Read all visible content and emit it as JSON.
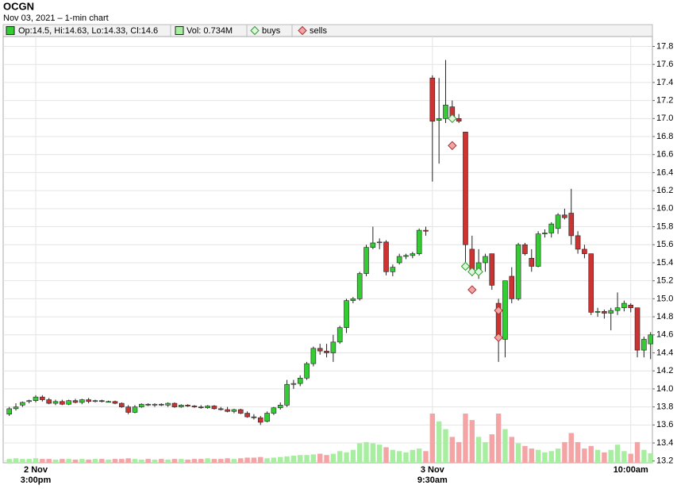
{
  "chart_data": {
    "type": "candlestick",
    "title": "OCGN",
    "subtitle": "Nov 03, 2021 – 1-min chart",
    "legend": {
      "ohlc": "Op:14.5, Hi:14.63, Lo:14.33, Cl:14.6",
      "volume": "Vol: 0.734M"
    },
    "up_color": "#33cc33",
    "down_color": "#cc3333",
    "volume_up_color": "#a8eea0",
    "volume_down_color": "#f4a4a4",
    "grid": true,
    "categories": [
      null,
      null,
      null,
      null,
      [
        "2 Nov",
        "3:00pm"
      ],
      null,
      null,
      null,
      null,
      null,
      null,
      null,
      null,
      null,
      null,
      null,
      null,
      null,
      null,
      null,
      null,
      null,
      null,
      null,
      null,
      null,
      null,
      null,
      null,
      null,
      null,
      null,
      null,
      null,
      null,
      null,
      null,
      null,
      null,
      null,
      null,
      null,
      null,
      null,
      null,
      null,
      null,
      null,
      null,
      null,
      null,
      null,
      null,
      null,
      null,
      null,
      null,
      null,
      null,
      null,
      null,
      null,
      null,
      null,
      [
        "3 Nov",
        "9:30am"
      ],
      null,
      null,
      null,
      null,
      null,
      null,
      null,
      null,
      null,
      null,
      null,
      null,
      null,
      null,
      null,
      null,
      null,
      null,
      null,
      null,
      null,
      null,
      null,
      null,
      null,
      null,
      null,
      null,
      null,
      "10:00am",
      null,
      null,
      null
    ],
    "open": [
      13.72,
      13.78,
      13.82,
      13.86,
      13.87,
      13.91,
      13.88,
      13.84,
      13.86,
      13.83,
      13.87,
      13.85,
      13.88,
      13.86,
      13.87,
      13.86,
      13.86,
      13.84,
      13.8,
      13.74,
      13.8,
      13.83,
      13.82,
      13.83,
      13.82,
      13.84,
      13.8,
      13.82,
      13.81,
      13.8,
      13.79,
      13.81,
      13.78,
      13.77,
      13.75,
      13.77,
      13.73,
      13.69,
      13.68,
      13.64,
      13.73,
      13.79,
      13.82,
      14.05,
      14.06,
      14.12,
      14.28,
      14.45,
      14.42,
      14.4,
      14.52,
      14.68,
      14.98,
      15.0,
      15.28,
      15.57,
      15.63,
      15.63,
      15.3,
      15.4,
      15.47,
      15.48,
      15.5,
      15.76,
      17.45,
      16.98,
      17.0,
      17.13,
      17.0,
      16.85,
      15.55,
      15.3,
      15.4,
      15.5,
      14.95,
      14.55,
      15.25,
      15.0,
      15.6,
      15.45,
      15.36,
      15.72,
      15.73,
      15.78,
      15.93,
      15.95,
      15.7,
      15.55,
      15.5,
      14.85,
      14.86,
      14.84,
      14.87,
      14.9,
      14.93,
      14.9,
      14.43,
      14.5
    ],
    "high": [
      13.8,
      13.84,
      13.86,
      13.88,
      13.93,
      13.93,
      13.9,
      13.88,
      13.88,
      13.88,
      13.89,
      13.89,
      13.9,
      13.88,
      13.88,
      13.87,
      13.87,
      13.85,
      13.82,
      13.82,
      13.84,
      13.84,
      13.84,
      13.84,
      13.85,
      13.85,
      13.83,
      13.83,
      13.82,
      13.82,
      13.82,
      13.82,
      13.8,
      13.8,
      13.78,
      13.78,
      13.75,
      13.72,
      13.7,
      13.75,
      13.8,
      13.85,
      14.1,
      14.1,
      14.15,
      14.3,
      14.47,
      14.5,
      14.5,
      14.6,
      14.7,
      15.0,
      15.02,
      15.3,
      15.6,
      15.8,
      15.67,
      15.65,
      15.38,
      15.5,
      15.5,
      15.52,
      15.78,
      15.8,
      17.48,
      17.45,
      17.65,
      17.2,
      17.05,
      16.85,
      15.7,
      15.55,
      15.5,
      15.5,
      15.0,
      15.2,
      15.35,
      15.62,
      15.62,
      15.55,
      15.75,
      15.77,
      15.85,
      15.95,
      16.0,
      16.22,
      15.75,
      15.6,
      15.5,
      14.9,
      14.88,
      14.9,
      15.07,
      14.98,
      14.95,
      14.9,
      14.58,
      14.63
    ],
    "low": [
      13.7,
      13.76,
      13.8,
      13.84,
      13.85,
      13.86,
      13.83,
      13.82,
      13.82,
      13.82,
      13.84,
      13.83,
      13.84,
      13.85,
      13.85,
      13.85,
      13.83,
      13.79,
      13.72,
      13.73,
      13.79,
      13.81,
      13.8,
      13.81,
      13.8,
      13.79,
      13.79,
      13.8,
      13.79,
      13.78,
      13.78,
      13.77,
      13.76,
      13.74,
      13.73,
      13.72,
      13.68,
      13.66,
      13.6,
      13.63,
      13.71,
      13.77,
      13.8,
      14.0,
      14.03,
      14.1,
      14.25,
      14.38,
      14.35,
      14.3,
      14.5,
      14.62,
      14.95,
      14.98,
      15.25,
      15.55,
      15.55,
      15.26,
      15.25,
      15.38,
      15.44,
      15.45,
      15.48,
      15.7,
      16.3,
      16.5,
      16.95,
      16.98,
      16.95,
      15.35,
      15.25,
      15.22,
      15.3,
      15.1,
      14.3,
      14.35,
      14.95,
      14.98,
      15.48,
      15.3,
      15.35,
      15.68,
      15.68,
      15.72,
      15.88,
      15.6,
      15.5,
      15.45,
      14.82,
      14.8,
      14.78,
      14.65,
      14.82,
      14.86,
      14.85,
      14.35,
      14.35,
      14.33
    ],
    "close": [
      13.78,
      13.8,
      13.85,
      13.87,
      13.91,
      13.88,
      13.84,
      13.86,
      13.83,
      13.87,
      13.85,
      13.88,
      13.86,
      13.87,
      13.86,
      13.86,
      13.84,
      13.8,
      13.74,
      13.8,
      13.83,
      13.82,
      13.83,
      13.82,
      13.84,
      13.8,
      13.82,
      13.81,
      13.8,
      13.79,
      13.81,
      13.78,
      13.77,
      13.75,
      13.77,
      13.73,
      13.69,
      13.68,
      13.63,
      13.73,
      13.79,
      13.82,
      14.05,
      14.06,
      14.12,
      14.28,
      14.45,
      14.42,
      14.4,
      14.52,
      14.68,
      14.98,
      15.0,
      15.28,
      15.57,
      15.62,
      15.63,
      15.3,
      15.35,
      15.47,
      15.48,
      15.5,
      15.76,
      15.75,
      16.97,
      17.0,
      17.15,
      17.0,
      16.97,
      15.6,
      15.32,
      15.4,
      15.47,
      15.15,
      14.55,
      15.2,
      15.0,
      15.6,
      15.5,
      15.36,
      15.72,
      15.73,
      15.83,
      15.93,
      15.9,
      15.7,
      15.55,
      15.5,
      14.85,
      14.86,
      14.84,
      14.87,
      14.9,
      14.95,
      14.9,
      14.43,
      14.55,
      14.6
    ],
    "volume": [
      0.3,
      0.35,
      0.3,
      0.3,
      0.35,
      0.3,
      0.3,
      0.25,
      0.3,
      0.3,
      0.25,
      0.3,
      0.25,
      0.3,
      0.3,
      0.25,
      0.3,
      0.3,
      0.35,
      0.3,
      0.25,
      0.3,
      0.25,
      0.3,
      0.25,
      0.3,
      0.3,
      0.25,
      0.3,
      0.3,
      0.35,
      0.3,
      0.3,
      0.35,
      0.3,
      0.35,
      0.4,
      0.4,
      0.45,
      0.35,
      0.4,
      0.45,
      0.5,
      0.55,
      0.6,
      0.6,
      0.65,
      0.7,
      0.6,
      0.7,
      0.9,
      0.8,
      1.0,
      1.5,
      1.6,
      1.5,
      1.4,
      1.2,
      1.0,
      0.9,
      0.8,
      1.0,
      1.1,
      0.9,
      3.8,
      3.2,
      2.6,
      2.0,
      1.6,
      3.8,
      3.3,
      2.0,
      1.6,
      2.2,
      3.8,
      2.6,
      2.0,
      1.5,
      1.3,
      1.1,
      1.0,
      0.8,
      0.9,
      1.1,
      1.6,
      2.3,
      1.6,
      1.1,
      1.3,
      1.0,
      0.8,
      1.0,
      1.4,
      0.9,
      0.7,
      1.6,
      1.0,
      0.734
    ],
    "volume_lim": [
      0,
      3.8
    ],
    "buys": {
      "name": "buys",
      "color": "#ddf7dd",
      "index": [
        67,
        69,
        70,
        71
      ],
      "values": [
        17.0,
        15.36,
        15.3,
        15.3
      ]
    },
    "sells": {
      "name": "sells",
      "color": "#f4a4a4",
      "index": [
        67,
        70,
        74,
        74
      ],
      "values": [
        16.7,
        15.1,
        14.87,
        14.57
      ]
    },
    "ylim": [
      13.18,
      17.91
    ],
    "yticks": [
      13.2,
      13.4,
      13.6,
      13.8,
      {
        "value": 14,
        "label": "14.0"
      },
      14.2,
      14.4,
      14.6,
      14.8,
      {
        "value": 15,
        "label": "15.0"
      },
      15.2,
      15.4,
      15.6,
      15.8,
      {
        "value": 16,
        "label": "16.0"
      },
      16.2,
      16.4,
      16.6,
      16.8,
      {
        "value": 17,
        "label": "17.0"
      },
      17.2,
      17.4,
      17.6,
      17.8
    ]
  }
}
